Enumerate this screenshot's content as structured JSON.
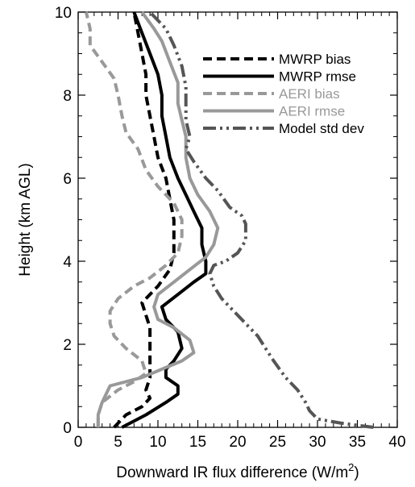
{
  "chart_data": {
    "type": "line",
    "xlabel": "Downward IR flux difference (W/m",
    "xlabel_sup": "2",
    "xlabel_end": ")",
    "ylabel": "Height (km AGL)",
    "xlim": [
      0,
      40
    ],
    "ylim": [
      0,
      10
    ],
    "xticks": [
      0,
      5,
      10,
      15,
      20,
      25,
      30,
      35,
      40
    ],
    "yticks": [
      0,
      2,
      4,
      6,
      8,
      10
    ],
    "legend_position": "top-right",
    "grid": false,
    "series": [
      {
        "name": "MWRP bias",
        "color": "#000000",
        "dash": "dashed",
        "points": [
          [
            4.5,
            0
          ],
          [
            6,
            0.3
          ],
          [
            8,
            0.5
          ],
          [
            9,
            0.7
          ],
          [
            8.5,
            0.9
          ],
          [
            9,
            1.2
          ],
          [
            9,
            1.5
          ],
          [
            9,
            2.0
          ],
          [
            9,
            2.4
          ],
          [
            8.5,
            2.7
          ],
          [
            8,
            3.0
          ],
          [
            10,
            3.4
          ],
          [
            11.5,
            3.8
          ],
          [
            12,
            4.2
          ],
          [
            12,
            4.6
          ],
          [
            12,
            5.0
          ],
          [
            11.5,
            5.5
          ],
          [
            11,
            6.0
          ],
          [
            10,
            6.5
          ],
          [
            9.5,
            7.0
          ],
          [
            9,
            7.5
          ],
          [
            8.5,
            8.0
          ],
          [
            8.5,
            8.5
          ],
          [
            8,
            9.0
          ],
          [
            7.5,
            9.5
          ],
          [
            7,
            10.0
          ]
        ]
      },
      {
        "name": "MWRP rmse",
        "color": "#000000",
        "dash": "solid",
        "points": [
          [
            5.5,
            0
          ],
          [
            8.5,
            0.3
          ],
          [
            11,
            0.6
          ],
          [
            12.5,
            0.8
          ],
          [
            12.5,
            1.0
          ],
          [
            11,
            1.2
          ],
          [
            11,
            1.4
          ],
          [
            12,
            1.6
          ],
          [
            13,
            1.9
          ],
          [
            12.5,
            2.3
          ],
          [
            11,
            2.6
          ],
          [
            10.5,
            2.9
          ],
          [
            12.5,
            3.2
          ],
          [
            14.5,
            3.5
          ],
          [
            16,
            3.7
          ],
          [
            16,
            4.0
          ],
          [
            15.5,
            4.4
          ],
          [
            15.5,
            4.8
          ],
          [
            14.5,
            5.2
          ],
          [
            13.5,
            5.6
          ],
          [
            12.5,
            6.0
          ],
          [
            11.5,
            6.5
          ],
          [
            11,
            7.0
          ],
          [
            10.5,
            7.5
          ],
          [
            10.5,
            8.0
          ],
          [
            10,
            8.5
          ],
          [
            9,
            9.0
          ],
          [
            8,
            9.5
          ],
          [
            7,
            10.0
          ]
        ]
      },
      {
        "name": "AERI bias",
        "color": "#999999",
        "dash": "dashed",
        "points": [
          [
            2.5,
            0
          ],
          [
            2.5,
            0.3
          ],
          [
            3,
            0.6
          ],
          [
            5,
            0.9
          ],
          [
            7,
            1.1
          ],
          [
            8.5,
            1.3
          ],
          [
            8,
            1.6
          ],
          [
            6,
            1.9
          ],
          [
            4.5,
            2.2
          ],
          [
            4,
            2.5
          ],
          [
            4,
            2.8
          ],
          [
            5,
            3.1
          ],
          [
            7,
            3.4
          ],
          [
            9,
            3.6
          ],
          [
            11,
            3.9
          ],
          [
            12.5,
            4.2
          ],
          [
            13,
            4.6
          ],
          [
            13,
            5.0
          ],
          [
            12,
            5.4
          ],
          [
            10,
            5.8
          ],
          [
            8.5,
            6.2
          ],
          [
            7.5,
            6.7
          ],
          [
            6,
            7.1
          ],
          [
            5.5,
            7.5
          ],
          [
            5,
            8.0
          ],
          [
            4.5,
            8.4
          ],
          [
            3,
            8.8
          ],
          [
            1.5,
            9.2
          ],
          [
            1.5,
            9.6
          ],
          [
            1,
            10.0
          ]
        ]
      },
      {
        "name": "AERI rmse",
        "color": "#999999",
        "dash": "solid",
        "points": [
          [
            2.5,
            0
          ],
          [
            2.5,
            0.3
          ],
          [
            3,
            0.6
          ],
          [
            3.5,
            0.8
          ],
          [
            4,
            1.0
          ],
          [
            8,
            1.2
          ],
          [
            10.5,
            1.4
          ],
          [
            13,
            1.6
          ],
          [
            14.5,
            1.8
          ],
          [
            14,
            2.1
          ],
          [
            12,
            2.4
          ],
          [
            10,
            2.6
          ],
          [
            9.5,
            2.9
          ],
          [
            10,
            3.2
          ],
          [
            12,
            3.5
          ],
          [
            14,
            3.8
          ],
          [
            16,
            4.1
          ],
          [
            17,
            4.4
          ],
          [
            17.5,
            4.8
          ],
          [
            16.5,
            5.2
          ],
          [
            15,
            5.6
          ],
          [
            14,
            6.0
          ],
          [
            13.5,
            6.5
          ],
          [
            13.5,
            7.0
          ],
          [
            13,
            7.4
          ],
          [
            12.5,
            7.8
          ],
          [
            12.5,
            8.3
          ],
          [
            11.5,
            8.8
          ],
          [
            10.5,
            9.3
          ],
          [
            9.5,
            9.6
          ],
          [
            8,
            10.0
          ]
        ]
      },
      {
        "name": "Model std dev",
        "color": "#555555",
        "dash": "dashdotdot",
        "points": [
          [
            37,
            0
          ],
          [
            33,
            0.1
          ],
          [
            30,
            0.2
          ],
          [
            29,
            0.4
          ],
          [
            28.5,
            0.6
          ],
          [
            27.5,
            0.9
          ],
          [
            26,
            1.2
          ],
          [
            24.5,
            1.6
          ],
          [
            23.5,
            1.9
          ],
          [
            22.5,
            2.2
          ],
          [
            21,
            2.5
          ],
          [
            19.5,
            2.8
          ],
          [
            18,
            3.1
          ],
          [
            17,
            3.4
          ],
          [
            16.5,
            3.7
          ],
          [
            17,
            3.9
          ],
          [
            18.5,
            4.0
          ],
          [
            20,
            4.2
          ],
          [
            21,
            4.5
          ],
          [
            21,
            4.9
          ],
          [
            20.5,
            5.1
          ],
          [
            19,
            5.3
          ],
          [
            17.5,
            5.7
          ],
          [
            16,
            6.0
          ],
          [
            14.5,
            6.4
          ],
          [
            13.5,
            6.7
          ],
          [
            14,
            7.0
          ],
          [
            13.5,
            7.4
          ],
          [
            13.5,
            7.8
          ],
          [
            13.5,
            8.2
          ],
          [
            13,
            8.7
          ],
          [
            12,
            9.2
          ],
          [
            11,
            9.6
          ],
          [
            9,
            10.0
          ]
        ]
      }
    ]
  }
}
